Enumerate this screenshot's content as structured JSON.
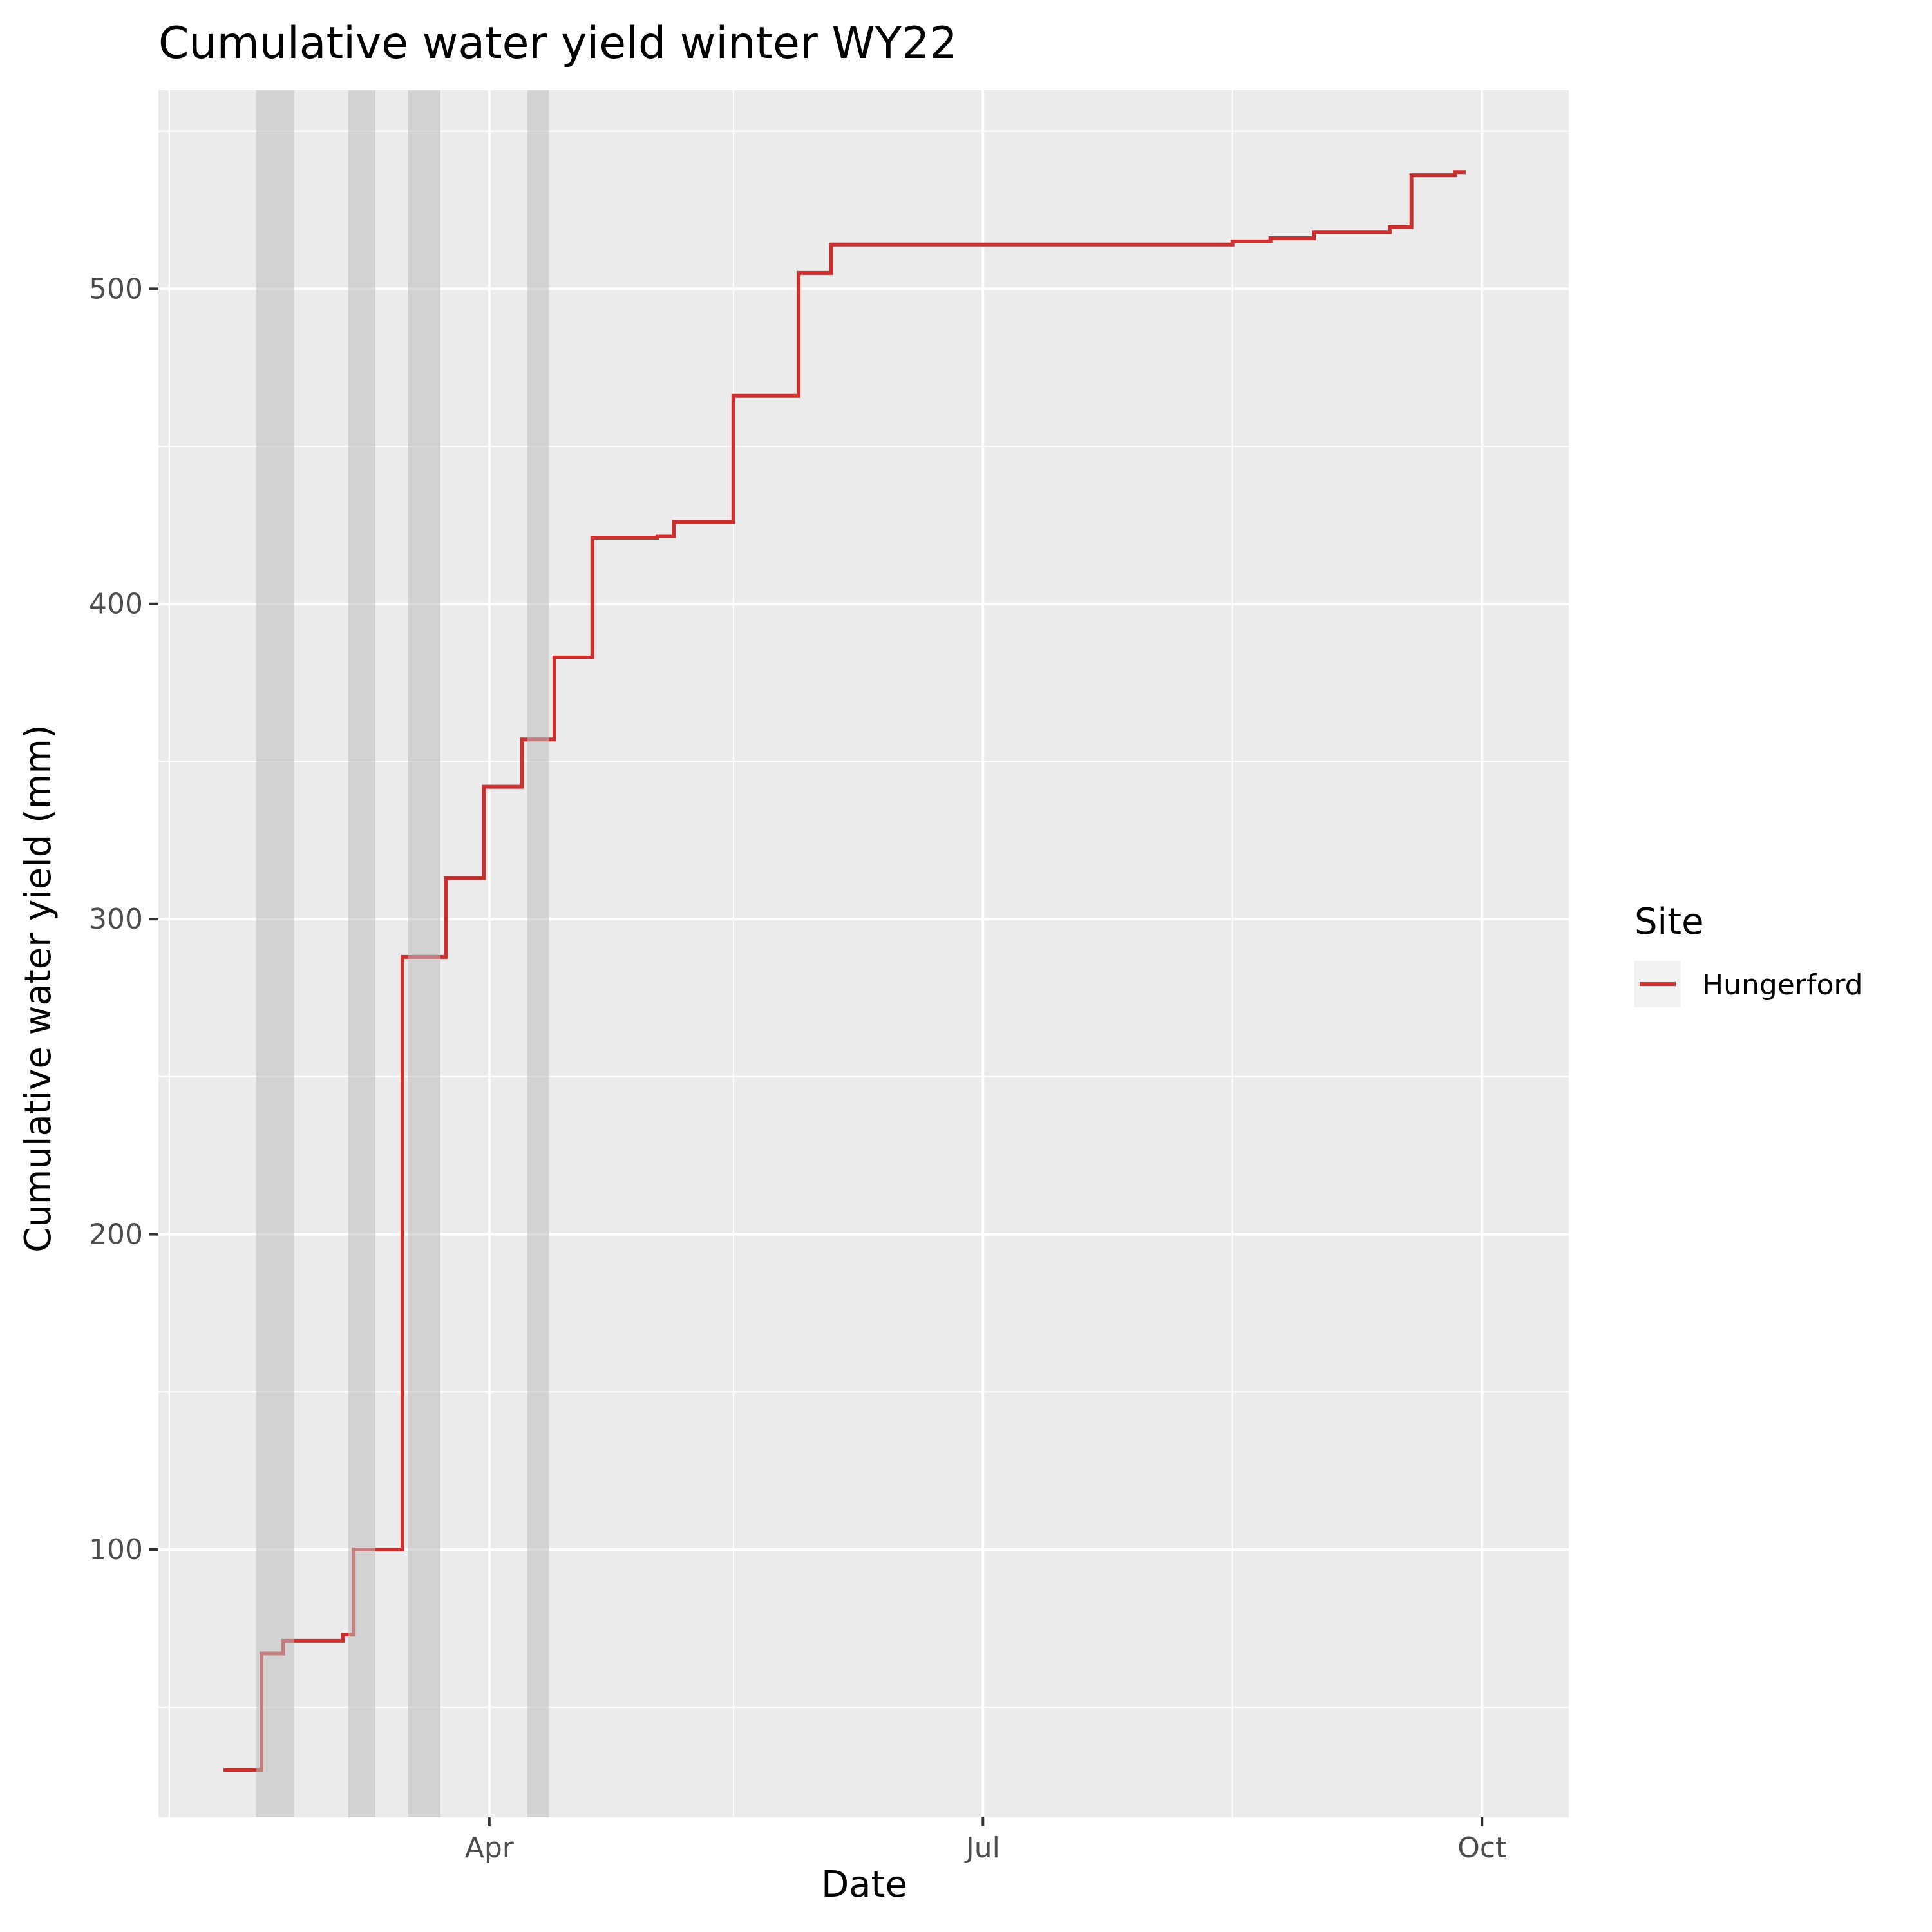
{
  "chart_data": {
    "type": "line",
    "title": "Cumulative water yield winter WY22",
    "xlabel": "Date",
    "ylabel": "Cumulative water yield (mm)",
    "x_ticks": [
      {
        "date": "2022-04-01",
        "label": "Apr"
      },
      {
        "date": "2022-07-01",
        "label": "Jul"
      },
      {
        "date": "2022-10-01",
        "label": "Oct"
      }
    ],
    "x_minor_ticks": [
      "2022-02-01",
      "2022-05-16",
      "2022-08-16"
    ],
    "y_ticks": [
      100,
      200,
      300,
      400,
      500
    ],
    "y_minor_ticks": [
      50,
      150,
      250,
      350,
      450,
      550
    ],
    "xlim": [
      "2022-01-30",
      "2022-10-17"
    ],
    "ylim": [
      15,
      563
    ],
    "grid": true,
    "legend": {
      "title": "Site",
      "position": "right",
      "entries": [
        "Hungerford"
      ]
    },
    "series": [
      {
        "name": "Hungerford",
        "color": "#C8312F",
        "step": true,
        "points": [
          [
            "2022-02-11",
            30
          ],
          [
            "2022-02-18",
            30
          ],
          [
            "2022-02-18",
            67
          ],
          [
            "2022-02-22",
            67
          ],
          [
            "2022-02-22",
            71
          ],
          [
            "2022-03-05",
            71
          ],
          [
            "2022-03-05",
            73
          ],
          [
            "2022-03-07",
            73
          ],
          [
            "2022-03-07",
            100
          ],
          [
            "2022-03-16",
            100
          ],
          [
            "2022-03-16",
            288
          ],
          [
            "2022-03-24",
            288
          ],
          [
            "2022-03-24",
            313
          ],
          [
            "2022-03-31",
            313
          ],
          [
            "2022-03-31",
            342
          ],
          [
            "2022-04-07",
            342
          ],
          [
            "2022-04-07",
            357
          ],
          [
            "2022-04-13",
            357
          ],
          [
            "2022-04-13",
            383
          ],
          [
            "2022-04-20",
            383
          ],
          [
            "2022-04-20",
            421
          ],
          [
            "2022-05-02",
            421
          ],
          [
            "2022-05-02",
            421.5
          ],
          [
            "2022-05-05",
            421.5
          ],
          [
            "2022-05-05",
            426
          ],
          [
            "2022-05-16",
            426
          ],
          [
            "2022-05-16",
            466
          ],
          [
            "2022-05-28",
            466
          ],
          [
            "2022-05-28",
            505
          ],
          [
            "2022-06-03",
            505
          ],
          [
            "2022-06-03",
            514
          ],
          [
            "2022-08-16",
            514
          ],
          [
            "2022-08-16",
            515
          ],
          [
            "2022-08-23",
            515
          ],
          [
            "2022-08-23",
            516
          ],
          [
            "2022-08-31",
            516
          ],
          [
            "2022-08-31",
            518
          ],
          [
            "2022-09-14",
            518
          ],
          [
            "2022-09-14",
            519.5
          ],
          [
            "2022-09-18",
            519.5
          ],
          [
            "2022-09-18",
            536
          ],
          [
            "2022-09-26",
            536
          ],
          [
            "2022-09-26",
            537
          ],
          [
            "2022-09-28",
            537
          ]
        ]
      }
    ],
    "shaded_periods": [
      {
        "start": "2022-02-17",
        "end": "2022-02-24"
      },
      {
        "start": "2022-03-06",
        "end": "2022-03-11"
      },
      {
        "start": "2022-03-17",
        "end": "2022-03-23"
      },
      {
        "start": "2022-04-08",
        "end": "2022-04-12"
      }
    ],
    "colors": {
      "panel_background": "#EBEBEB",
      "grid": "#FFFFFF",
      "shade": "#CDCDCD",
      "legend_key_background": "#F2F2F2"
    }
  }
}
